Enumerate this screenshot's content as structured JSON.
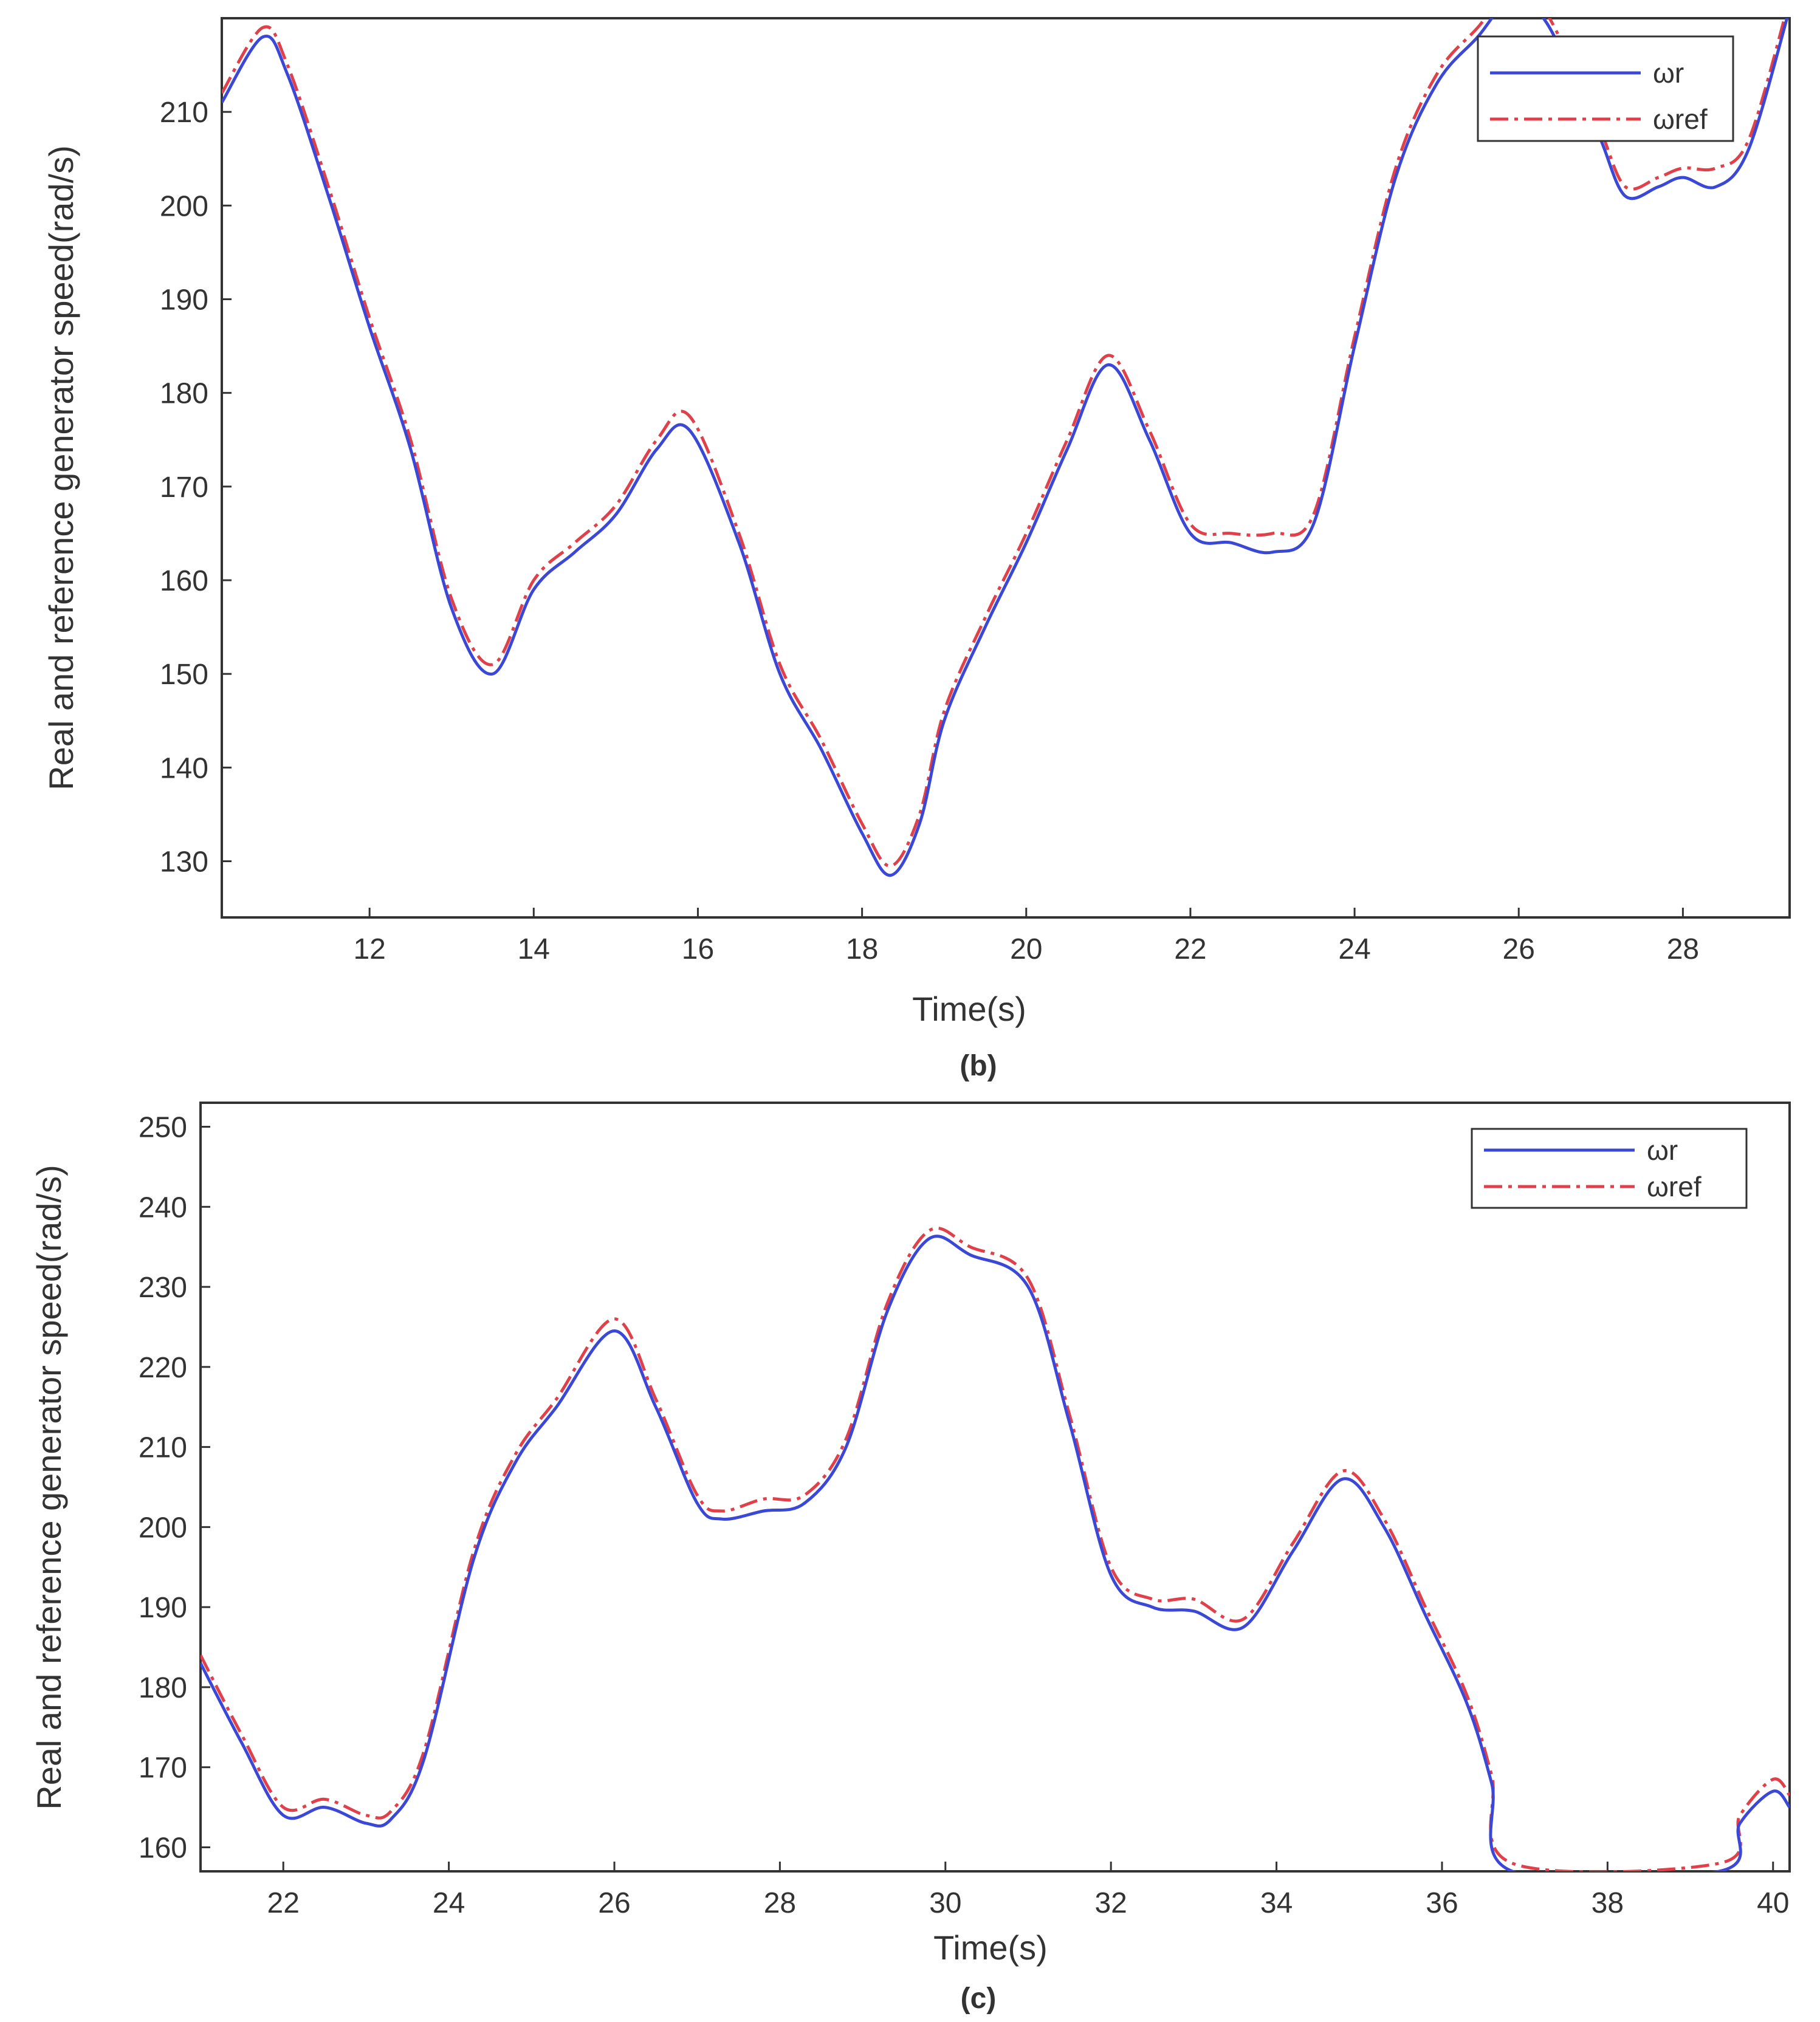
{
  "chart_data": [
    {
      "type": "line",
      "caption": "(b)",
      "xlabel": "Time(s)",
      "ylabel": "Real and reference generator speed(rad/s)",
      "xlim": [
        10.2,
        29.3
      ],
      "ylim": [
        124,
        220
      ],
      "xticks": [
        12,
        14,
        16,
        18,
        20,
        22,
        24,
        26,
        28
      ],
      "yticks": [
        130,
        140,
        150,
        160,
        170,
        180,
        190,
        200,
        210
      ],
      "legend_position": "top-right",
      "colors": {
        "wr": "#3b48d6",
        "wref": "#e0404a"
      },
      "x": [
        10.2,
        10.7,
        11.0,
        11.5,
        12.0,
        12.5,
        13.0,
        13.5,
        14.0,
        14.5,
        15.0,
        15.5,
        15.9,
        16.5,
        17.0,
        17.5,
        18.0,
        18.35,
        18.7,
        19.0,
        19.5,
        20.0,
        20.5,
        21.0,
        21.5,
        22.0,
        22.5,
        23.0,
        23.5,
        24.0,
        24.5,
        25.0,
        25.5,
        25.9,
        26.3,
        26.7,
        27.0,
        27.3,
        27.7,
        28.0,
        28.4,
        28.8,
        29.3
      ],
      "series": [
        {
          "name": "ωr",
          "values": [
            211,
            218,
            214,
            201,
            187,
            174,
            157,
            150,
            159,
            163,
            167,
            174,
            176,
            164,
            150,
            142,
            133,
            128.5,
            134,
            145,
            155,
            164,
            174,
            183,
            175,
            165,
            164,
            163,
            166,
            185,
            203,
            213,
            218,
            222,
            220,
            213,
            207,
            201,
            202,
            203,
            202,
            206,
            221
          ]
        },
        {
          "name": "ωref",
          "values": [
            212,
            219,
            215,
            202,
            188,
            175,
            158,
            151,
            160,
            164,
            168,
            175,
            177.5,
            165,
            151,
            143,
            134,
            129.5,
            135,
            146,
            156,
            165,
            175,
            184,
            176,
            166,
            165,
            165,
            167,
            186,
            204,
            214,
            219,
            223,
            221,
            214,
            208,
            202,
            203,
            204,
            204,
            207,
            222
          ]
        }
      ]
    },
    {
      "type": "line",
      "caption": "(c)",
      "xlabel": "Time(s)",
      "ylabel": "Real and reference generator speed(rad/s)",
      "xlim": [
        21,
        40.2
      ],
      "ylim": [
        157,
        253
      ],
      "xticks": [
        22,
        24,
        26,
        28,
        30,
        32,
        34,
        36,
        38,
        40
      ],
      "yticks": [
        160,
        170,
        180,
        190,
        200,
        210,
        220,
        230,
        240,
        250
      ],
      "legend_position": "top-right",
      "colors": {
        "wr": "#3b48d6",
        "wref": "#e0404a"
      },
      "x": [
        21.0,
        21.5,
        22.0,
        22.5,
        23.0,
        23.3,
        23.7,
        24.3,
        24.8,
        25.3,
        26.0,
        26.5,
        27.0,
        27.3,
        27.8,
        28.3,
        28.8,
        29.3,
        29.8,
        30.3,
        31.0,
        31.5,
        32.0,
        32.5,
        33.0,
        33.6,
        34.2,
        34.8,
        35.3,
        35.8,
        36.3,
        36.6,
        36.85,
        39.35,
        39.6,
        40.0,
        40.2
      ],
      "series": [
        {
          "name": "ωr",
          "values": [
            183,
            173,
            164,
            165,
            163,
            163.5,
            171,
            196,
            208,
            215,
            224.5,
            215,
            203,
            201,
            202,
            203,
            210,
            227,
            236,
            234,
            230,
            213,
            194,
            190,
            189.5,
            187.5,
            197,
            206,
            200,
            189,
            178,
            168,
            157,
            157,
            163,
            167,
            165
          ]
        },
        {
          "name": "ωref",
          "values": [
            184,
            174,
            165,
            166,
            164,
            164.5,
            172,
            197,
            209,
            216,
            226,
            216,
            204,
            202,
            203.5,
            204,
            211,
            228,
            237,
            235,
            231,
            214,
            195,
            191,
            191,
            188.5,
            198,
            207,
            201,
            190,
            179,
            169,
            158,
            158,
            164,
            168.5,
            166.5
          ]
        }
      ]
    }
  ]
}
